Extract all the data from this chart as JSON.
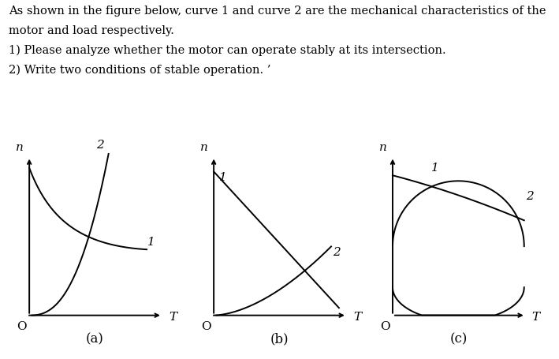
{
  "title_line1": "As shown in the figure below, curve 1 and curve 2 are the mechanical characteristics of the",
  "title_line2": "motor and load respectively.",
  "q1_text": "1) Please analyze whether the motor can operate stably at its intersection.",
  "q2_text": "2) Write two conditions of stable operation. ’",
  "subfig_labels": [
    "(a)",
    "(b)",
    "(c)"
  ],
  "axis_label_n": "n",
  "axis_label_T": "T",
  "origin_label": "O",
  "curve1_label": "1",
  "curve2_label": "2",
  "line_color": "#000000",
  "bg_color": "#ffffff",
  "text_fontsize": 10.5,
  "label_fontsize": 11,
  "curve_lw": 1.4
}
